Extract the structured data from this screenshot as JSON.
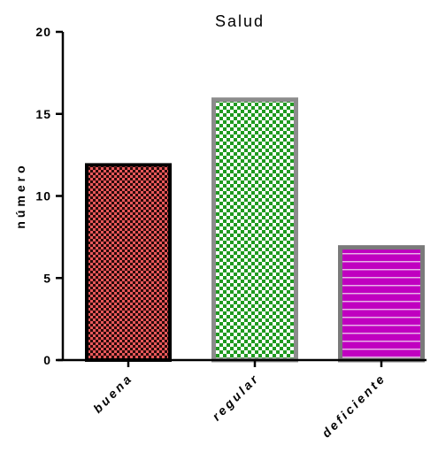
{
  "chart_data": {
    "type": "bar",
    "title": "Salud",
    "xlabel": "",
    "ylabel": "número",
    "categories": [
      "buena",
      "regular",
      "deficiente"
    ],
    "values": [
      12,
      16,
      7
    ],
    "ylim": [
      0,
      20
    ],
    "yticks": [
      "0",
      "5",
      "10",
      "15",
      "20"
    ],
    "grid": false,
    "legend": "none",
    "bar_styles": [
      {
        "fill": "#e8585a",
        "pattern_color": "#2a0a0a",
        "pattern": "checker",
        "border": "#000000"
      },
      {
        "fill": "#1f9a1f",
        "pattern_color": "#ffffff",
        "pattern": "checker",
        "border": "#8c8c8c"
      },
      {
        "fill": "#c000c0",
        "pattern_color": "#e8b0e8",
        "pattern": "horizontal-lines",
        "border": "#7a7a7a"
      }
    ]
  }
}
